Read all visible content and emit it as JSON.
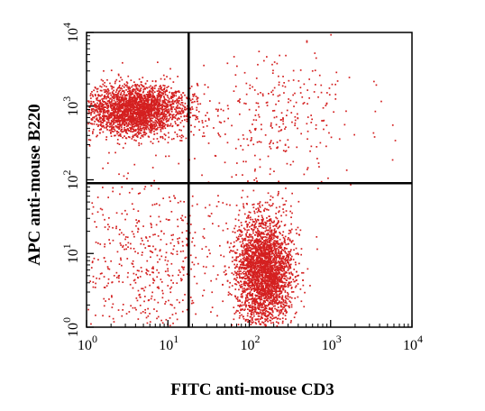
{
  "chart_data": {
    "type": "scatter",
    "title": "",
    "xlabel": "FITC anti-mouse CD3",
    "ylabel": "APC anti-mouse B220",
    "x_scale": "log",
    "y_scale": "log",
    "xlim": [
      1,
      10000
    ],
    "ylim": [
      1,
      10000
    ],
    "x_ticks": [
      {
        "base": "10",
        "exp": "0",
        "value": 1
      },
      {
        "base": "10",
        "exp": "1",
        "value": 10
      },
      {
        "base": "10",
        "exp": "2",
        "value": 100
      },
      {
        "base": "10",
        "exp": "3",
        "value": 1000
      },
      {
        "base": "10",
        "exp": "4",
        "value": 10000
      }
    ],
    "y_ticks": [
      {
        "base": "10",
        "exp": "0",
        "value": 1
      },
      {
        "base": "10",
        "exp": "1",
        "value": 10
      },
      {
        "base": "10",
        "exp": "2",
        "value": 100
      },
      {
        "base": "10",
        "exp": "3",
        "value": 1000
      },
      {
        "base": "10",
        "exp": "4",
        "value": 10000
      }
    ],
    "quadrant_gates": {
      "x": 18,
      "y": 90
    },
    "grid": false,
    "point_color": "#d42020",
    "populations": [
      {
        "center_x": 4,
        "center_y": 900,
        "count": 2600,
        "spread_x_decades": 0.3,
        "spread_y_decades": 0.17
      },
      {
        "center_x": 150,
        "center_y": 6,
        "count": 2900,
        "spread_x_decades": 0.17,
        "spread_y_decades": 0.36
      },
      {
        "center_x": 5,
        "center_y": 8,
        "count": 600,
        "spread_x_decades": 0.55,
        "spread_y_decades": 0.55
      },
      {
        "center_x": 200,
        "center_y": 700,
        "count": 300,
        "spread_x_decades": 0.5,
        "spread_y_decades": 0.45
      }
    ]
  }
}
